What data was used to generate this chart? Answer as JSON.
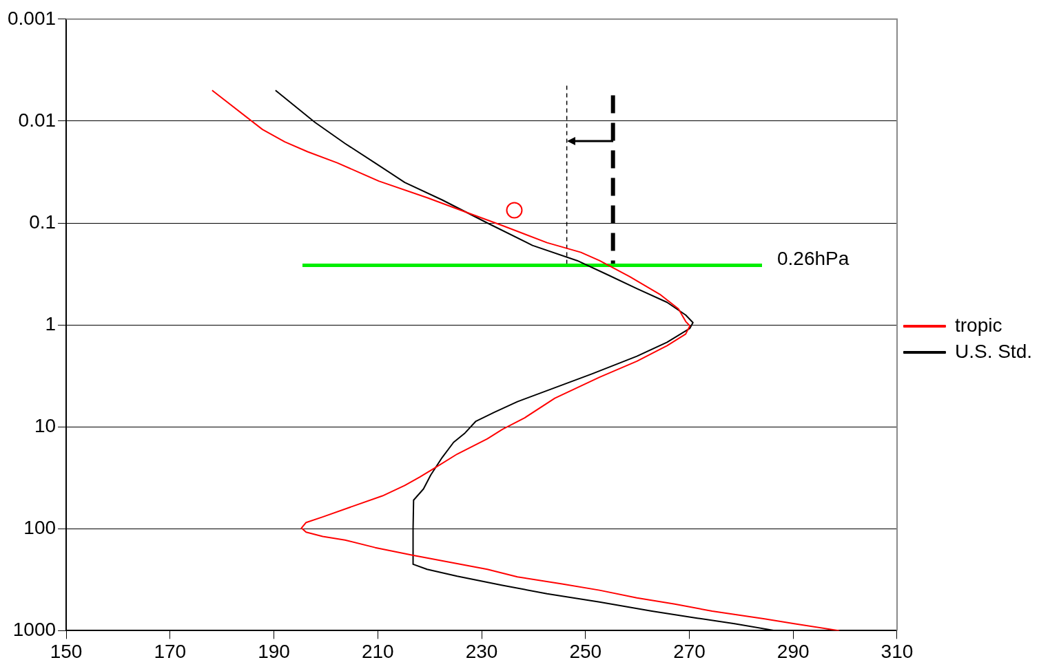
{
  "chart_data": {
    "type": "line",
    "log": "y",
    "grid": "y",
    "legend": "right",
    "xlim": [
      150,
      310
    ],
    "xticks": [
      150,
      170,
      190,
      210,
      230,
      250,
      270,
      290,
      310
    ],
    "ylim": [
      1000,
      0.001
    ],
    "yticks": [
      0.001,
      0.01,
      0.1,
      1,
      10,
      100,
      1000
    ],
    "series": [
      {
        "name": "tropic",
        "color": "#ff0000",
        "x": [
          178.1,
          187.8,
          192.1,
          196.5,
          202.2,
          210.2,
          219.6,
          226.8,
          234.0,
          242.6,
          249.1,
          252.7,
          258.5,
          264.3,
          267.9,
          269.3,
          270.1,
          269.3,
          265.7,
          259.9,
          252.7,
          244.1,
          238.3,
          234.0,
          231.1,
          225.3,
          221.0,
          218.1,
          215.2,
          210.9,
          205.1,
          199.4,
          196.2,
          195.3,
          196.2,
          199.4,
          203.7,
          209.5,
          216.7,
          223.9,
          231.1,
          236.9,
          245.5,
          252.7,
          259.9,
          267.2,
          274.4,
          284.5,
          290.2,
          298.9
        ],
        "values": [
          0.005,
          0.0121,
          0.016,
          0.02,
          0.0257,
          0.0388,
          0.0567,
          0.0776,
          0.106,
          0.156,
          0.194,
          0.234,
          0.336,
          0.5,
          0.695,
          0.925,
          1.02,
          1.23,
          1.6,
          2.27,
          3.26,
          5.24,
          8.15,
          10.6,
          13.1,
          18.5,
          25.3,
          31.1,
          37.6,
          47.6,
          60.4,
          76.6,
          86.8,
          98.5,
          108,
          119,
          129,
          153,
          182,
          213,
          250,
          297,
          348,
          401,
          476,
          549,
          643,
          765,
          855,
          1000
        ]
      },
      {
        "name": "U.S. Std.",
        "color": "#000000",
        "x": [
          190.3,
          197.9,
          203.7,
          209.5,
          215.2,
          222.4,
          231.1,
          239.8,
          248.4,
          254.2,
          259.9,
          265.7,
          269.3,
          270.7,
          270.1,
          265.7,
          259.9,
          251.3,
          244.1,
          236.9,
          232.5,
          228.9,
          226.8,
          224.6,
          222.4,
          220.2,
          218.8,
          216.9,
          216.8,
          216.8,
          219.5,
          225.3,
          234.0,
          242.6,
          252.7,
          262.8,
          271.5,
          278.7,
          286.6
        ],
        "values": [
          0.005,
          0.0103,
          0.0166,
          0.0258,
          0.04,
          0.0594,
          0.1,
          0.166,
          0.234,
          0.321,
          0.44,
          0.6,
          0.8,
          0.95,
          1.08,
          1.48,
          2.03,
          3.02,
          4.13,
          5.66,
          7.18,
          8.81,
          11.5,
          14.2,
          20.0,
          29.7,
          40.7,
          52.4,
          100,
          223,
          250,
          292,
          359,
          434,
          524,
          643,
          753,
          855,
          1000
        ]
      },
      {
        "color": "#00ee00",
        "x": [
          195.5,
          284
        ],
        "values": [
          0.26,
          0.26
        ]
      },
      {
        "color": "#000000",
        "line_style": "dotted",
        "x": [
          246.4,
          246.4
        ],
        "values": [
          0.0045,
          0.26
        ]
      },
      {
        "color": "#000000",
        "line_style": "dashed",
        "x": [
          255.3,
          255.3
        ],
        "values": [
          0.0056,
          0.26
        ]
      },
      {
        "type": "scatter",
        "marker": "circle",
        "color": "#ff0000",
        "x": [
          236.3
        ],
        "values": [
          0.075
        ]
      }
    ],
    "annotations": [
      "0.26hPa"
    ]
  }
}
